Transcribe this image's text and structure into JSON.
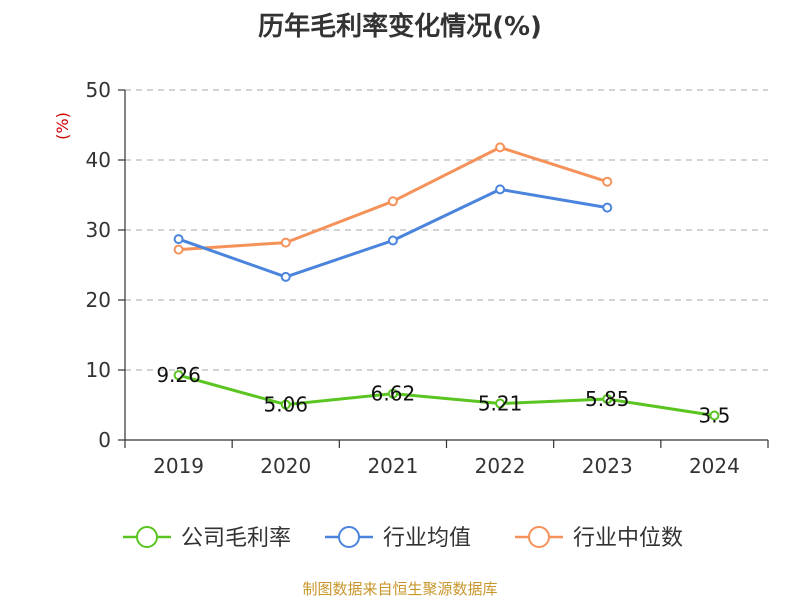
{
  "chart_data": {
    "type": "line",
    "title": "历年毛利率变化情况(%)",
    "ylabel": "(%)",
    "xlabel": "",
    "categories": [
      "2019",
      "2020",
      "2021",
      "2022",
      "2023",
      "2024"
    ],
    "ylim": [
      0,
      50
    ],
    "yticks": [
      0,
      10,
      20,
      30,
      40,
      50
    ],
    "grid": true,
    "legend_position": "bottom",
    "series": [
      {
        "name": "公司毛利率",
        "color": "#5ac421",
        "values": [
          9.26,
          5.06,
          6.62,
          5.21,
          5.85,
          3.5
        ],
        "labels": [
          "9.26",
          "5.06",
          "6.62",
          "5.21",
          "5.85",
          "3.5"
        ]
      },
      {
        "name": "行业均值",
        "color": "#4b84dd",
        "values": [
          28.7,
          23.3,
          28.5,
          35.8,
          33.2,
          null
        ]
      },
      {
        "name": "行业中位数",
        "color": "#f5925a",
        "values": [
          27.2,
          28.2,
          34.1,
          41.8,
          36.9,
          null
        ]
      }
    ]
  },
  "footer": {
    "source": "制图数据来自恒生聚源数据库",
    "color": "#c8962a"
  },
  "colors": {
    "axis": "#333333",
    "grid": "#bbbbbb",
    "ylabel": "#cc0000"
  }
}
